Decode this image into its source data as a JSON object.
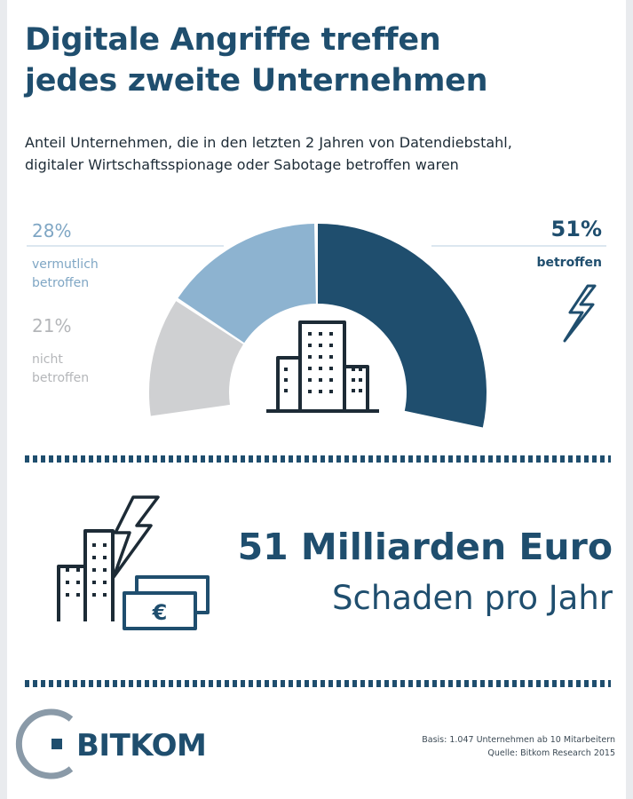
{
  "header": {
    "title_line1": "Digitale Angriffe treffen",
    "title_line2": "jedes zweite Unternehmen",
    "subtitle_line1": "Anteil Unternehmen, die in den letzten 2 Jahren von Datendiebstahl,",
    "subtitle_line2": "digitaler Wirtschaftsspionage oder Sabotage betroffen waren"
  },
  "chart_data": {
    "type": "pie",
    "subtype": "semi-donut",
    "title": "",
    "series": [
      {
        "name": "betroffen",
        "value": 51,
        "label": "51%",
        "color": "#1f4e6e"
      },
      {
        "name": "vermutlich betroffen",
        "value": 28,
        "label": "28%",
        "color": "#8db3d0"
      },
      {
        "name": "nicht betroffen",
        "value": 21,
        "label": "21%",
        "color": "#cfd0d2"
      }
    ],
    "labels": {
      "betroffen": {
        "pct": "51%",
        "text_line1": "betroffen"
      },
      "vermutlich": {
        "pct": "28%",
        "text_line1": "vermutlich",
        "text_line2": "betroffen"
      },
      "nicht": {
        "pct": "21%",
        "text_line1": "nicht",
        "text_line2": "betroffen"
      }
    }
  },
  "highlight": {
    "amount": "51 Milliarden Euro",
    "description": "Schaden pro Jahr",
    "currency_symbol": "€"
  },
  "footer": {
    "logo": "BITKOM",
    "basis": "Basis: 1.047 Unternehmen ab 10 Mitarbeitern",
    "source": "Quelle: Bitkom Research 2015"
  },
  "colors": {
    "primary": "#1f4e6e",
    "light_blue": "#8db3d0",
    "gray": "#cfd0d2",
    "text_dark": "#1d2b36"
  },
  "icons": [
    "building-icon",
    "lightning-icon",
    "money-icon",
    "bitkom-logo-icon"
  ]
}
